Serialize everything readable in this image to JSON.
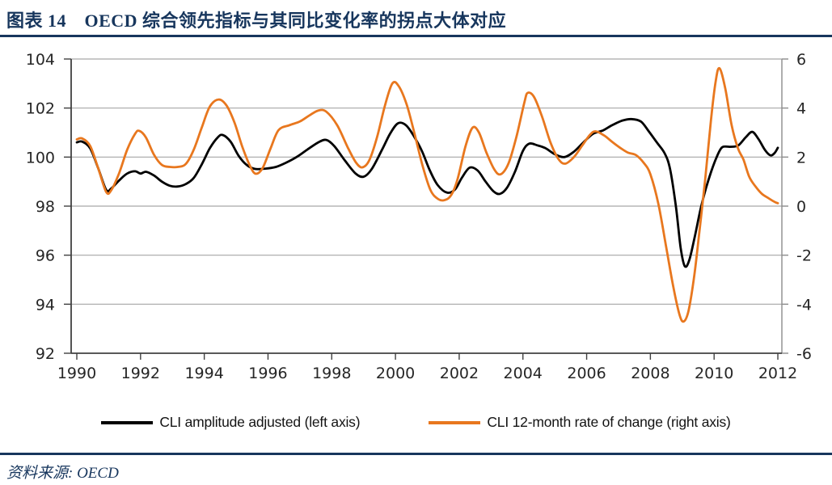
{
  "header": {
    "title": "图表 14　OECD 综合领先指标与其同比变化率的拐点大体对应"
  },
  "source": {
    "label": "资料来源: OECD"
  },
  "colors": {
    "accent_navy": "#17365D",
    "cli_line": "#000000",
    "roc_line": "#E8771E",
    "gridline": "#A6A6A6",
    "axis_dark": "#404040",
    "axis_right": "#8C8C8C",
    "tick_text": "#262626"
  },
  "legend": {
    "items": [
      {
        "label": "CLI amplitude adjusted (left axis)",
        "color": "#000000"
      },
      {
        "label": "CLI 12-month rate of change (right axis)",
        "color": "#E8771E"
      }
    ]
  },
  "chart_data": {
    "type": "line",
    "title": "OECD composite leading indicator vs its 12-month rate of change",
    "grid": true,
    "x_range": [
      1990,
      2012.13
    ],
    "x_ticks": [
      1990,
      1992,
      1994,
      1996,
      1998,
      2000,
      2002,
      2004,
      2006,
      2008,
      2010,
      2012
    ],
    "left_axis": {
      "range": [
        92,
        104
      ],
      "ticks": [
        104,
        102,
        100,
        98,
        96,
        94,
        92
      ]
    },
    "right_axis": {
      "range": [
        -6,
        6
      ],
      "ticks": [
        6,
        4,
        2,
        0,
        -2,
        -4,
        -6
      ]
    },
    "series": [
      {
        "name": "CLI amplitude adjusted (left axis)",
        "axis": "left",
        "color": "#000000",
        "points": [
          [
            1990.0,
            100.6
          ],
          [
            1990.17,
            100.63
          ],
          [
            1990.42,
            100.35
          ],
          [
            1990.67,
            99.55
          ],
          [
            1990.92,
            98.67
          ],
          [
            1991.08,
            98.72
          ],
          [
            1991.33,
            99.05
          ],
          [
            1991.58,
            99.33
          ],
          [
            1991.83,
            99.42
          ],
          [
            1992.0,
            99.33
          ],
          [
            1992.17,
            99.4
          ],
          [
            1992.42,
            99.25
          ],
          [
            1992.67,
            99.0
          ],
          [
            1992.92,
            98.83
          ],
          [
            1993.17,
            98.8
          ],
          [
            1993.42,
            98.9
          ],
          [
            1993.67,
            99.15
          ],
          [
            1993.92,
            99.7
          ],
          [
            1994.17,
            100.35
          ],
          [
            1994.42,
            100.8
          ],
          [
            1994.58,
            100.9
          ],
          [
            1994.83,
            100.62
          ],
          [
            1995.08,
            100.05
          ],
          [
            1995.33,
            99.68
          ],
          [
            1995.58,
            99.52
          ],
          [
            1995.92,
            99.53
          ],
          [
            1996.25,
            99.6
          ],
          [
            1996.58,
            99.78
          ],
          [
            1996.92,
            100.02
          ],
          [
            1997.25,
            100.32
          ],
          [
            1997.58,
            100.6
          ],
          [
            1997.83,
            100.7
          ],
          [
            1998.08,
            100.45
          ],
          [
            1998.42,
            99.85
          ],
          [
            1998.75,
            99.33
          ],
          [
            1999.0,
            99.2
          ],
          [
            1999.25,
            99.5
          ],
          [
            1999.58,
            100.3
          ],
          [
            1999.83,
            100.95
          ],
          [
            2000.08,
            101.38
          ],
          [
            2000.33,
            101.3
          ],
          [
            2000.58,
            100.85
          ],
          [
            2000.83,
            100.25
          ],
          [
            2001.08,
            99.45
          ],
          [
            2001.33,
            98.85
          ],
          [
            2001.62,
            98.55
          ],
          [
            2001.87,
            98.68
          ],
          [
            2002.08,
            99.15
          ],
          [
            2002.33,
            99.57
          ],
          [
            2002.58,
            99.45
          ],
          [
            2002.83,
            99.0
          ],
          [
            2003.08,
            98.6
          ],
          [
            2003.28,
            98.5
          ],
          [
            2003.5,
            98.75
          ],
          [
            2003.75,
            99.4
          ],
          [
            2004.0,
            100.25
          ],
          [
            2004.2,
            100.55
          ],
          [
            2004.45,
            100.48
          ],
          [
            2004.7,
            100.37
          ],
          [
            2005.0,
            100.12
          ],
          [
            2005.3,
            100.0
          ],
          [
            2005.6,
            100.22
          ],
          [
            2005.9,
            100.6
          ],
          [
            2006.2,
            100.95
          ],
          [
            2006.5,
            101.08
          ],
          [
            2006.8,
            101.3
          ],
          [
            2007.1,
            101.48
          ],
          [
            2007.4,
            101.55
          ],
          [
            2007.7,
            101.45
          ],
          [
            2007.95,
            101.05
          ],
          [
            2008.2,
            100.6
          ],
          [
            2008.45,
            100.15
          ],
          [
            2008.62,
            99.5
          ],
          [
            2008.8,
            98.0
          ],
          [
            2008.95,
            96.3
          ],
          [
            2009.08,
            95.55
          ],
          [
            2009.22,
            95.8
          ],
          [
            2009.4,
            96.8
          ],
          [
            2009.58,
            97.9
          ],
          [
            2009.75,
            98.75
          ],
          [
            2009.92,
            99.45
          ],
          [
            2010.08,
            100.0
          ],
          [
            2010.25,
            100.4
          ],
          [
            2010.5,
            100.42
          ],
          [
            2010.75,
            100.47
          ],
          [
            2011.0,
            100.82
          ],
          [
            2011.2,
            101.03
          ],
          [
            2011.4,
            100.72
          ],
          [
            2011.6,
            100.28
          ],
          [
            2011.77,
            100.07
          ],
          [
            2011.9,
            100.17
          ],
          [
            2012.0,
            100.38
          ]
        ]
      },
      {
        "name": "CLI 12-month rate of change (right axis)",
        "axis": "right",
        "color": "#E8771E",
        "points": [
          [
            1990.0,
            2.72
          ],
          [
            1990.17,
            2.76
          ],
          [
            1990.42,
            2.45
          ],
          [
            1990.67,
            1.55
          ],
          [
            1990.92,
            0.58
          ],
          [
            1991.08,
            0.65
          ],
          [
            1991.33,
            1.35
          ],
          [
            1991.58,
            2.3
          ],
          [
            1991.83,
            2.95
          ],
          [
            1991.96,
            3.07
          ],
          [
            1992.17,
            2.8
          ],
          [
            1992.42,
            2.1
          ],
          [
            1992.67,
            1.68
          ],
          [
            1992.92,
            1.6
          ],
          [
            1993.17,
            1.6
          ],
          [
            1993.42,
            1.72
          ],
          [
            1993.67,
            2.3
          ],
          [
            1993.92,
            3.2
          ],
          [
            1994.17,
            4.05
          ],
          [
            1994.45,
            4.35
          ],
          [
            1994.7,
            4.1
          ],
          [
            1994.95,
            3.4
          ],
          [
            1995.2,
            2.4
          ],
          [
            1995.45,
            1.6
          ],
          [
            1995.62,
            1.32
          ],
          [
            1995.83,
            1.55
          ],
          [
            1996.08,
            2.35
          ],
          [
            1996.33,
            3.1
          ],
          [
            1996.67,
            3.3
          ],
          [
            1997.0,
            3.45
          ],
          [
            1997.3,
            3.7
          ],
          [
            1997.58,
            3.9
          ],
          [
            1997.83,
            3.85
          ],
          [
            1998.17,
            3.3
          ],
          [
            1998.5,
            2.4
          ],
          [
            1998.75,
            1.8
          ],
          [
            1998.95,
            1.58
          ],
          [
            1999.17,
            1.85
          ],
          [
            1999.42,
            2.8
          ],
          [
            1999.67,
            4.1
          ],
          [
            1999.9,
            5.0
          ],
          [
            2000.1,
            4.9
          ],
          [
            2000.35,
            4.15
          ],
          [
            2000.6,
            2.95
          ],
          [
            2000.85,
            1.65
          ],
          [
            2001.1,
            0.65
          ],
          [
            2001.35,
            0.28
          ],
          [
            2001.55,
            0.25
          ],
          [
            2001.75,
            0.45
          ],
          [
            2001.95,
            1.1
          ],
          [
            2002.2,
            2.45
          ],
          [
            2002.42,
            3.2
          ],
          [
            2002.62,
            3.0
          ],
          [
            2002.85,
            2.2
          ],
          [
            2003.1,
            1.5
          ],
          [
            2003.3,
            1.3
          ],
          [
            2003.55,
            1.75
          ],
          [
            2003.8,
            2.85
          ],
          [
            2004.05,
            4.25
          ],
          [
            2004.15,
            4.62
          ],
          [
            2004.35,
            4.45
          ],
          [
            2004.6,
            3.65
          ],
          [
            2004.85,
            2.65
          ],
          [
            2005.1,
            1.95
          ],
          [
            2005.32,
            1.73
          ],
          [
            2005.6,
            2.0
          ],
          [
            2005.85,
            2.45
          ],
          [
            2006.1,
            2.9
          ],
          [
            2006.28,
            3.05
          ],
          [
            2006.55,
            2.88
          ],
          [
            2006.8,
            2.62
          ],
          [
            2007.05,
            2.38
          ],
          [
            2007.3,
            2.18
          ],
          [
            2007.55,
            2.08
          ],
          [
            2007.8,
            1.75
          ],
          [
            2008.0,
            1.3
          ],
          [
            2008.25,
            0.1
          ],
          [
            2008.5,
            -1.7
          ],
          [
            2008.72,
            -3.3
          ],
          [
            2008.92,
            -4.45
          ],
          [
            2009.05,
            -4.7
          ],
          [
            2009.2,
            -4.25
          ],
          [
            2009.38,
            -2.8
          ],
          [
            2009.55,
            -0.9
          ],
          [
            2009.72,
            1.1
          ],
          [
            2009.9,
            3.5
          ],
          [
            2010.05,
            5.1
          ],
          [
            2010.17,
            5.62
          ],
          [
            2010.35,
            4.8
          ],
          [
            2010.55,
            3.3
          ],
          [
            2010.75,
            2.35
          ],
          [
            2010.92,
            1.9
          ],
          [
            2011.1,
            1.2
          ],
          [
            2011.3,
            0.8
          ],
          [
            2011.5,
            0.5
          ],
          [
            2011.7,
            0.33
          ],
          [
            2011.9,
            0.17
          ],
          [
            2012.0,
            0.12
          ]
        ]
      }
    ]
  }
}
